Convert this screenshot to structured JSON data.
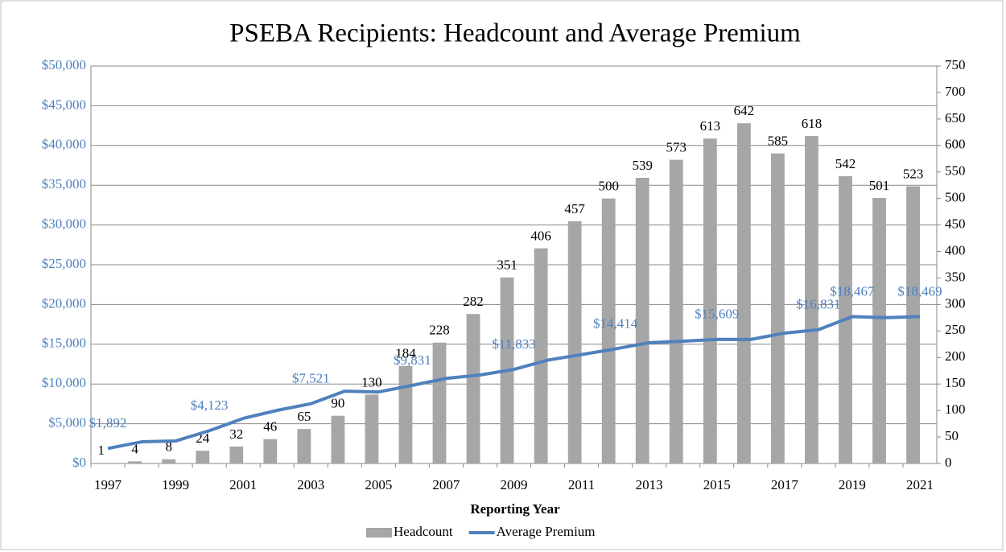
{
  "chart_data": {
    "type": "bar",
    "title": "PSEBA Recipients: Headcount and Average Premium",
    "x_label": "Reporting Year",
    "categories": [
      "1997",
      null,
      "1999",
      null,
      "2001",
      null,
      "2003",
      null,
      "2005",
      null,
      "2007",
      null,
      "2009",
      null,
      "2011",
      null,
      "2013",
      null,
      "2015",
      null,
      "2017",
      null,
      "2019",
      null,
      "2021"
    ],
    "series": [
      {
        "name": "Headcount",
        "type": "bar",
        "axis": "y2",
        "color": "#a6a6a6",
        "values": [
          1,
          4,
          8,
          24,
          32,
          46,
          65,
          90,
          130,
          184,
          228,
          282,
          351,
          406,
          457,
          500,
          539,
          573,
          613,
          642,
          585,
          618,
          542,
          501,
          523
        ]
      },
      {
        "name": "Average Premium",
        "type": "line",
        "color": "#4f81bd",
        "values": [
          1892,
          2730,
          2830,
          4123,
          5670,
          6680,
          7521,
          9100,
          9000,
          9831,
          10700,
          11130,
          11833,
          13000,
          13700,
          14414,
          15200,
          15380,
          15609,
          15600,
          16400,
          16831,
          18467,
          18350,
          18469
        ],
        "value_labels": [
          "$1,892",
          null,
          null,
          "$4,123",
          null,
          null,
          "$7,521",
          null,
          null,
          "$9,831",
          null,
          null,
          "$11,833",
          null,
          null,
          "$14,414",
          null,
          null,
          "$15,609",
          null,
          null,
          "$16,831",
          "$18,467",
          null,
          "$18,469"
        ]
      }
    ],
    "ylim": [
      0,
      50000
    ],
    "yticks": [
      {
        "value": 0,
        "label": "$0"
      },
      {
        "value": 5000,
        "label": "$5,000"
      },
      {
        "value": 10000,
        "label": "$10,000"
      },
      {
        "value": 15000,
        "label": "$15,000"
      },
      {
        "value": 20000,
        "label": "$20,000"
      },
      {
        "value": 25000,
        "label": "$25,000"
      },
      {
        "value": 30000,
        "label": "$30,000"
      },
      {
        "value": 35000,
        "label": "$35,000"
      },
      {
        "value": 40000,
        "label": "$40,000"
      },
      {
        "value": 45000,
        "label": "$45,000"
      },
      {
        "value": 50000,
        "label": "$50,000"
      }
    ],
    "y2lim": [
      0,
      750
    ],
    "y2ticks": [
      0,
      50,
      100,
      150,
      200,
      250,
      300,
      350,
      400,
      450,
      500,
      550,
      600,
      650,
      700,
      750
    ],
    "grid": true,
    "legend": "bottom"
  }
}
